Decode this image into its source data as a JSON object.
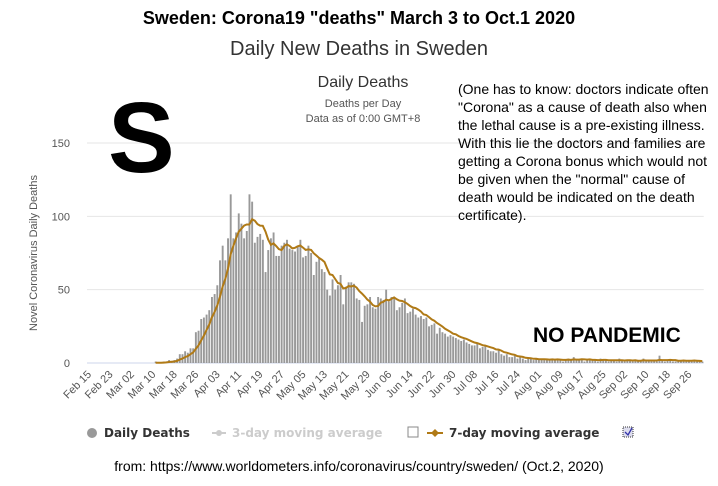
{
  "title": "Sweden: Corona19 \"deaths\" March 3 to Oct.1 2020",
  "subtitle": "Daily New Deaths in Sweden",
  "big_letter": "S",
  "note": "(One has to know: doctors indicate often \"Corona\" as a cause of death also when the lethal cause is a pre-existing illness. With this lie the doctors and families are getting a Corona bonus which would not be given when the \"normal\" cause of death would be indicated on the death certificate).",
  "stamp": "NO PANDEMIC",
  "footer": "from:  https://www.worldometers.info/coronavirus/country/sweden/ (Oct.2, 2020)",
  "colors": {
    "bars": "#999999",
    "ma7": "#b07a16",
    "grid": "#e6e6e6"
  },
  "chart_data": {
    "type": "bar",
    "title": "Daily Deaths",
    "subtitle_lines": [
      "Deaths per Day",
      "Data as of 0:00 GMT+8"
    ],
    "ylabel": "Novel Coronavirus Daily Deaths",
    "ylim": [
      0,
      150
    ],
    "yticks": [
      0,
      50,
      100,
      150
    ],
    "grid": true,
    "xticks": [
      "Feb 15",
      "Feb 23",
      "Mar 02",
      "Mar 10",
      "Mar 18",
      "Mar 26",
      "Apr 03",
      "Apr 11",
      "Apr 19",
      "Apr 27",
      "May 05",
      "May 13",
      "May 21",
      "May 29",
      "Jun 06",
      "Jun 14",
      "Jun 22",
      "Jun 30",
      "Jul 08",
      "Jul 16",
      "Jul 24",
      "Aug 01",
      "Aug 09",
      "Aug 17",
      "Aug 25",
      "Sep 02",
      "Sep 10",
      "Sep 18",
      "Sep 26"
    ],
    "legend_position": "bottom",
    "legend": [
      {
        "name": "Daily Deaths",
        "visible": true
      },
      {
        "name": "3-day moving average",
        "visible": false
      },
      {
        "name": "7-day moving average",
        "visible": true
      }
    ],
    "daily_values": [
      0,
      0,
      0,
      0,
      0,
      0,
      0,
      0,
      0,
      0,
      0,
      0,
      0,
      0,
      0,
      0,
      0,
      0,
      0,
      0,
      0,
      0,
      0,
      0,
      1,
      0,
      0,
      1,
      1,
      2,
      1,
      2,
      3,
      6,
      6,
      8,
      7,
      10,
      10,
      21,
      22,
      30,
      31,
      33,
      36,
      45,
      47,
      53,
      70,
      80,
      70,
      85,
      115,
      85,
      89,
      102,
      95,
      85,
      90,
      115,
      110,
      82,
      86,
      88,
      84,
      62,
      77,
      85,
      89,
      73,
      73,
      80,
      82,
      84,
      78,
      77,
      76,
      80,
      84,
      72,
      73,
      80,
      75,
      60,
      69,
      72,
      64,
      62,
      50,
      46,
      57,
      50,
      53,
      60,
      40,
      52,
      55,
      55,
      54,
      44,
      43,
      28,
      39,
      40,
      45,
      38,
      37,
      45,
      44,
      43,
      50,
      42,
      45,
      44,
      36,
      38,
      41,
      44,
      34,
      35,
      37,
      33,
      31,
      32,
      30,
      31,
      25,
      26,
      27,
      20,
      24,
      21,
      20,
      18,
      19,
      18,
      17,
      16,
      15,
      16,
      14,
      13,
      12,
      12,
      13,
      10,
      11,
      12,
      9,
      8,
      8,
      7,
      9,
      6,
      5,
      6,
      4,
      4,
      5,
      3,
      4,
      3,
      2,
      3,
      3,
      2,
      3,
      2,
      3,
      2,
      2,
      2,
      3,
      2,
      3,
      2,
      1,
      2,
      3,
      2,
      4,
      2,
      2,
      3,
      1,
      2,
      3,
      2,
      2,
      1,
      3,
      2,
      2,
      1,
      2,
      2,
      1,
      3,
      2,
      1,
      2,
      2,
      1,
      2,
      1,
      2,
      3,
      1,
      2,
      1,
      2,
      1,
      5,
      2,
      1,
      2,
      2,
      1,
      1,
      2,
      2,
      2,
      1,
      2,
      1,
      2,
      1,
      1,
      1
    ]
  }
}
